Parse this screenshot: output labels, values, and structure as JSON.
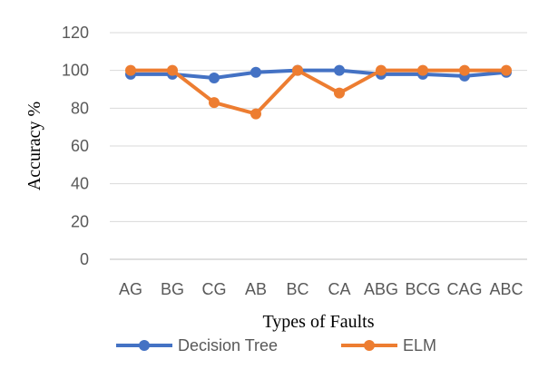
{
  "chart_data": {
    "type": "line",
    "categories": [
      "AG",
      "BG",
      "CG",
      "AB",
      "BC",
      "CA",
      "ABG",
      "BCG",
      "CAG",
      "ABC"
    ],
    "series": [
      {
        "name": "Decision Tree",
        "color": "#4472C4",
        "values": [
          98,
          98,
          96,
          99,
          100,
          100,
          98,
          98,
          97,
          99
        ]
      },
      {
        "name": "ELM",
        "color": "#ED7D31",
        "values": [
          100,
          100,
          83,
          77,
          100,
          88,
          100,
          100,
          100,
          100
        ]
      }
    ],
    "title": "",
    "xlabel": "Types of Faults",
    "ylabel": "Accuracy %",
    "ylim": [
      0,
      120
    ],
    "yticks": [
      0,
      20,
      40,
      60,
      80,
      100,
      120
    ],
    "grid": true,
    "legend_position": "bottom"
  }
}
